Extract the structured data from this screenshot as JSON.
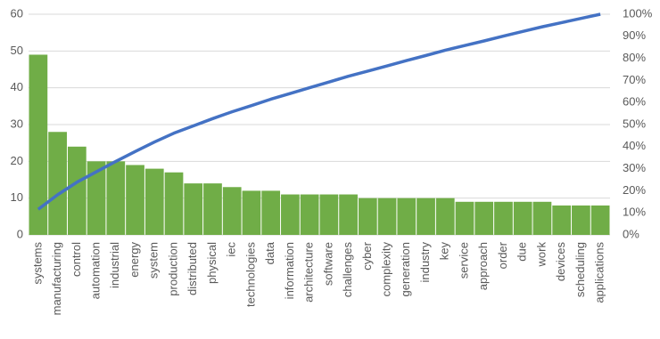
{
  "chart_data": {
    "type": "pareto",
    "categories": [
      "systems",
      "manufacturing",
      "control",
      "automation",
      "industrial",
      "energy",
      "system",
      "production",
      "distributed",
      "physical",
      "iec",
      "technologies",
      "data",
      "information",
      "architecture",
      "software",
      "challenges",
      "cyber",
      "complexity",
      "generation",
      "industry",
      "key",
      "service",
      "approach",
      "order",
      "due",
      "work",
      "devices",
      "scheduling",
      "applications"
    ],
    "series": [
      {
        "type": "bar",
        "color": "#70ad47",
        "values": [
          49,
          28,
          24,
          20,
          20,
          19,
          18,
          17,
          14,
          14,
          13,
          12,
          12,
          11,
          11,
          11,
          11,
          10,
          10,
          10,
          10,
          10,
          9,
          9,
          9,
          9,
          9,
          8,
          8,
          8
        ]
      },
      {
        "type": "line",
        "axis": "y2",
        "color": "#4472c4",
        "values": [
          11.6,
          18.2,
          23.9,
          28.6,
          33.3,
          37.8,
          42.1,
          46.1,
          49.4,
          52.7,
          55.8,
          58.6,
          61.5,
          64.1,
          66.7,
          69.3,
          71.9,
          74.2,
          76.6,
          79.0,
          81.3,
          83.7,
          85.8,
          87.9,
          90.1,
          92.2,
          94.3,
          96.2,
          98.1,
          100
        ]
      }
    ],
    "ylim": [
      0,
      60
    ],
    "yticks": [
      0,
      10,
      20,
      30,
      40,
      50,
      60
    ],
    "y2lim": [
      0,
      100
    ],
    "y2ticks": [
      {
        "value": 0,
        "label": "0%"
      },
      {
        "value": 10,
        "label": "10%"
      },
      {
        "value": 20,
        "label": "20%"
      },
      {
        "value": 30,
        "label": "30%"
      },
      {
        "value": 40,
        "label": "40%"
      },
      {
        "value": 50,
        "label": "50%"
      },
      {
        "value": 60,
        "label": "60%"
      },
      {
        "value": 70,
        "label": "70%"
      },
      {
        "value": 80,
        "label": "80%"
      },
      {
        "value": 90,
        "label": "90%"
      },
      {
        "value": 100,
        "label": "100%"
      }
    ],
    "grid": true
  }
}
